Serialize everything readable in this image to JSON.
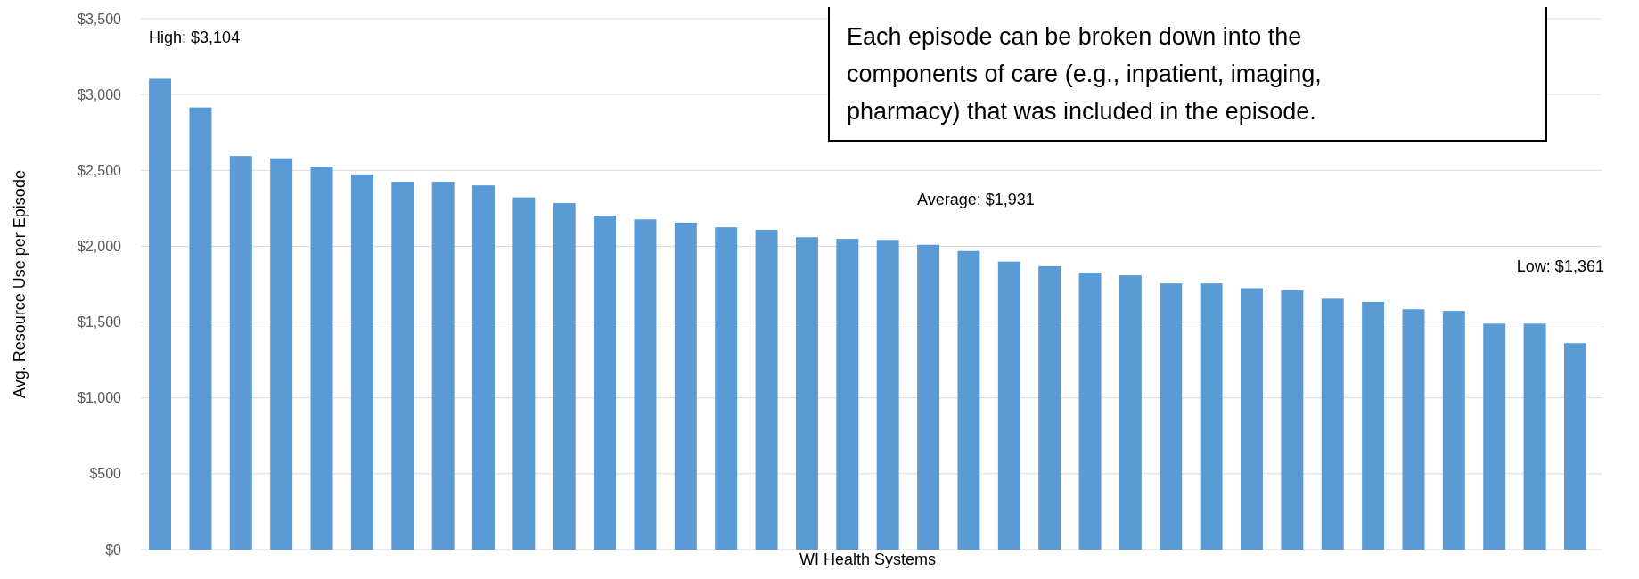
{
  "chart_data": {
    "type": "bar",
    "xlabel": "WI Health Systems",
    "ylabel": "Avg. Resource Use per Episode",
    "categories": [
      null,
      null,
      null,
      null,
      null,
      null,
      null,
      null,
      null,
      null,
      null,
      null,
      null,
      null,
      null,
      null,
      null,
      null,
      null,
      null,
      null,
      null,
      null,
      null,
      null,
      null,
      null,
      null,
      null,
      null,
      null,
      null,
      null,
      null,
      null,
      null
    ],
    "values": [
      3104,
      2915,
      2595,
      2580,
      2525,
      2473,
      2425,
      2425,
      2401,
      2322,
      2284,
      2201,
      2177,
      2156,
      2125,
      2108,
      2060,
      2049,
      2042,
      2010,
      1969,
      1899,
      1868,
      1827,
      1808,
      1755,
      1755,
      1724,
      1710,
      1654,
      1633,
      1584,
      1573,
      1490,
      1490,
      1361
    ],
    "color": "#5b9bd5",
    "ylim": [
      0,
      3500
    ],
    "yticks": [
      {
        "value": 0,
        "label": "$0"
      },
      {
        "value": 500,
        "label": "$500"
      },
      {
        "value": 1000,
        "label": "$1,000"
      },
      {
        "value": 1500,
        "label": "$1,500"
      },
      {
        "value": 2000,
        "label": "$2,000"
      },
      {
        "value": 2500,
        "label": "$2,500"
      },
      {
        "value": 3000,
        "label": "$3,000"
      },
      {
        "value": 3500,
        "label": "$3,500"
      }
    ],
    "grid": "y",
    "annotations": [
      "High: $3,104",
      "Average: $1,931",
      "Low: $1,361",
      "Each episode can be broken down into the components of care (e.g., inpatient, imaging, pharmacy) that was included in the episode."
    ]
  }
}
